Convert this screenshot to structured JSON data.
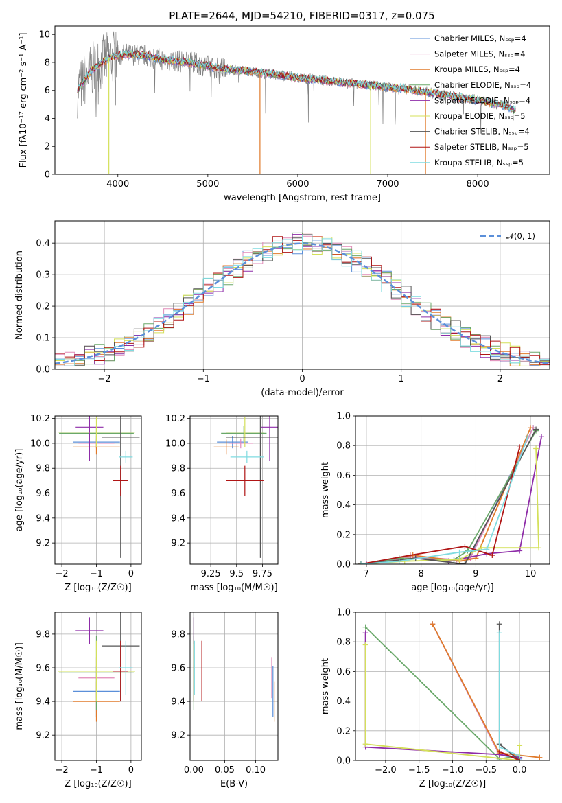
{
  "figure_title": "PLATE=2644, MJD=54210, FIBERID=0317, z=0.075",
  "palette": {
    "Chabrier MILES": "#5b8fd9",
    "Salpeter MILES": "#e08ab8",
    "Kroupa MILES": "#e07a2a",
    "Chabrier ELODIE": "#6aa86a",
    "Salpeter ELODIE": "#8e2ca8",
    "Kroupa ELODIE": "#d4e05a",
    "Chabrier STELIB": "#555555",
    "Salpeter STELIB": "#b01515",
    "Kroupa STELIB": "#7fdbe0",
    "data": "#808080",
    "normal": "#5b8fd9"
  },
  "chart_data": [
    {
      "id": "spectrum",
      "type": "line",
      "xlabel": "wavelength [Angstrom, rest frame]",
      "ylabel": "Flux [fλ10⁻¹⁷ erg cm⁻² s⁻¹ A⁻¹]",
      "xlim": [
        3300,
        8800
      ],
      "ylim": [
        0,
        10.6
      ],
      "xticks": [
        4000,
        5000,
        6000,
        7000,
        8000
      ],
      "yticks": [
        0,
        2,
        4,
        6,
        8,
        10
      ],
      "legend_position": "top-right",
      "legend": [
        "Chabrier MILES, Nₛₛₚ=4",
        "Salpeter MILES, Nₛₛₚ=4",
        "Kroupa MILES, Nₛₛₚ=4",
        "Chabrier ELODIE, Nₛₛₚ=4",
        "Salpeter ELODIE, Nₛₛₚ=4",
        "Kroupa ELODIE, Nₛₛₚ=5",
        "Chabrier STELIB, Nₛₛₚ=4",
        "Salpeter STELIB, Nₛₛₚ=5",
        "Kroupa STELIB, Nₛₛₚ=5"
      ],
      "continuum": {
        "x": [
          3550,
          3700,
          3900,
          4100,
          4300,
          4500,
          4800,
          5100,
          5400,
          5700,
          6000,
          6300,
          6600,
          6900,
          7200,
          7400,
          7700,
          8000,
          8300,
          8400
        ],
        "y": [
          6.0,
          7.4,
          8.3,
          8.6,
          8.5,
          8.2,
          8.0,
          7.6,
          7.4,
          7.2,
          6.9,
          6.7,
          6.5,
          6.3,
          6.1,
          5.9,
          5.6,
          5.3,
          4.9,
          4.6
        ]
      }
    },
    {
      "id": "residual_histogram",
      "type": "bar",
      "xlabel": "(data-model)/error",
      "ylabel": "Normed distribution",
      "xlim": [
        -2.5,
        2.5
      ],
      "ylim": [
        0,
        0.47
      ],
      "xticks": [
        -2,
        -1,
        0,
        1,
        2
      ],
      "yticks": [
        0.0,
        0.1,
        0.2,
        0.3,
        0.4
      ],
      "legend": [
        "𝒩(0, 1)"
      ],
      "legend_position": "top-right",
      "bin_width": 0.1
    },
    {
      "id": "age_vs_Z",
      "type": "scatter",
      "xlabel": "Z [log₁₀(Z/Z☉)]",
      "ylabel": "age [log₁₀(age/yr)]",
      "xlim": [
        -2.2,
        0.3
      ],
      "ylim": [
        9.03,
        10.22
      ],
      "xticks": [
        -2,
        -1,
        0
      ],
      "yticks": [
        9.2,
        9.4,
        9.6,
        9.8,
        10.0,
        10.2
      ],
      "points": [
        {
          "model": "Chabrier MILES",
          "x": -1.0,
          "y": 10.01,
          "xerr": 0.68,
          "yerr": 0.05
        },
        {
          "model": "Salpeter MILES",
          "x": -1.0,
          "y": 10.0,
          "xerr": 0.52,
          "yerr": 0.04
        },
        {
          "model": "Kroupa MILES",
          "x": -1.0,
          "y": 9.97,
          "xerr": 0.68,
          "yerr": 0.06
        },
        {
          "model": "Chabrier ELODIE",
          "x": -1.0,
          "y": 10.08,
          "xerr": 1.08,
          "yerr": 0.06
        },
        {
          "model": "Salpeter ELODIE",
          "x": -1.2,
          "y": 10.13,
          "xerr": 0.4,
          "yerr": 0.27
        },
        {
          "model": "Kroupa ELODIE",
          "x": -1.0,
          "y": 10.09,
          "xerr": 1.12,
          "yerr": 0.12
        },
        {
          "model": "Chabrier STELIB",
          "x": -0.3,
          "y": 10.05,
          "xerr": 0.55,
          "yerr": 0.97
        },
        {
          "model": "Salpeter STELIB",
          "x": -0.3,
          "y": 9.7,
          "xerr": 0.22,
          "yerr": 0.12
        },
        {
          "model": "Kroupa STELIB",
          "x": -0.15,
          "y": 9.89,
          "xerr": 0.2,
          "yerr": 0.05
        }
      ]
    },
    {
      "id": "age_vs_mass",
      "type": "scatter",
      "xlabel": "mass [log₁₀(M/M☉)]",
      "ylabel": "",
      "xlim": [
        9.05,
        9.9
      ],
      "ylim": [
        9.03,
        10.22
      ],
      "xticks": [
        9.25,
        9.5,
        9.75
      ],
      "yticks": [
        9.2,
        9.4,
        9.6,
        9.8,
        10.0,
        10.2
      ],
      "points": [
        {
          "model": "Chabrier MILES",
          "x": 9.46,
          "y": 10.01,
          "xerr": 0.15,
          "yerr": 0.05
        },
        {
          "model": "Salpeter MILES",
          "x": 9.54,
          "y": 10.0,
          "xerr": 0.12,
          "yerr": 0.04
        },
        {
          "model": "Kroupa MILES",
          "x": 9.4,
          "y": 9.97,
          "xerr": 0.12,
          "yerr": 0.06
        },
        {
          "model": "Chabrier ELODIE",
          "x": 9.57,
          "y": 10.08,
          "xerr": 0.22,
          "yerr": 0.06
        },
        {
          "model": "Salpeter ELODIE",
          "x": 9.82,
          "y": 10.13,
          "xerr": 0.08,
          "yerr": 0.27
        },
        {
          "model": "Kroupa ELODIE",
          "x": 9.58,
          "y": 10.09,
          "xerr": 0.18,
          "yerr": 0.12
        },
        {
          "model": "Chabrier STELIB",
          "x": 9.73,
          "y": 10.05,
          "xerr": 0.33,
          "yerr": 0.97
        },
        {
          "model": "Salpeter STELIB",
          "x": 9.58,
          "y": 9.7,
          "xerr": 0.18,
          "yerr": 0.12
        },
        {
          "model": "Kroupa STELIB",
          "x": 9.6,
          "y": 9.89,
          "xerr": 0.16,
          "yerr": 0.05
        }
      ]
    },
    {
      "id": "massweight_vs_age",
      "type": "line",
      "xlabel": "age [log₁₀(age/yr)]",
      "ylabel": "mass weight",
      "xlim": [
        6.8,
        10.35
      ],
      "ylim": [
        0,
        1.0
      ],
      "xticks": [
        7,
        8,
        9,
        10
      ],
      "yticks": [
        0.0,
        0.2,
        0.4,
        0.6,
        0.8,
        1.0
      ],
      "series": [
        {
          "model": "Chabrier MILES",
          "x": [
            6.9,
            7.8,
            8.6,
            8.9,
            10.05
          ],
          "y": [
            0.0,
            0.05,
            0.03,
            0.05,
            0.92
          ]
        },
        {
          "model": "Salpeter MILES",
          "x": [
            6.9,
            7.85,
            8.65,
            8.9,
            10.05
          ],
          "y": [
            0.0,
            0.05,
            0.03,
            0.04,
            0.92
          ]
        },
        {
          "model": "Kroupa MILES",
          "x": [
            6.9,
            7.85,
            8.7,
            9.0,
            10.0
          ],
          "y": [
            0.0,
            0.06,
            0.02,
            0.04,
            0.92
          ]
        },
        {
          "model": "Chabrier ELODIE",
          "x": [
            6.9,
            7.6,
            8.6,
            8.85,
            10.1
          ],
          "y": [
            0.0,
            0.04,
            0.03,
            0.09,
            0.9
          ]
        },
        {
          "model": "Salpeter ELODIE",
          "x": [
            7.0,
            7.9,
            8.5,
            9.2,
            9.8,
            10.2
          ],
          "y": [
            0.0,
            0.04,
            0.02,
            0.07,
            0.09,
            0.86
          ]
        },
        {
          "model": "Kroupa ELODIE",
          "x": [
            6.9,
            7.7,
            8.7,
            9.1,
            10.15,
            10.1
          ],
          "y": [
            0.0,
            0.02,
            0.03,
            0.11,
            0.11,
            0.78
          ]
        },
        {
          "model": "Chabrier STELIB",
          "x": [
            6.9,
            7.9,
            8.8,
            10.1
          ],
          "y": [
            0.0,
            0.04,
            0.0,
            0.91
          ]
        },
        {
          "model": "Salpeter STELIB",
          "x": [
            6.9,
            7.8,
            8.8,
            9.3,
            9.8
          ],
          "y": [
            0.0,
            0.06,
            0.12,
            0.06,
            0.79
          ]
        },
        {
          "model": "Kroupa STELIB",
          "x": [
            6.9,
            7.6,
            8.7,
            9.2,
            9.95
          ],
          "y": [
            0.0,
            0.02,
            0.08,
            0.1,
            0.86
          ]
        }
      ]
    },
    {
      "id": "mass_vs_Z",
      "type": "scatter",
      "xlabel": "Z [log₁₀(Z/Z☉)]",
      "ylabel": "mass [log₁₀(M/M☉)]",
      "xlim": [
        -2.2,
        0.3
      ],
      "ylim": [
        9.05,
        9.93
      ],
      "xticks": [
        -2,
        -1,
        0
      ],
      "yticks": [
        9.2,
        9.4,
        9.6,
        9.8
      ],
      "points": [
        {
          "model": "Chabrier MILES",
          "x": -1.0,
          "y": 9.46,
          "xerr": 0.68,
          "yerr": 0.15
        },
        {
          "model": "Salpeter MILES",
          "x": -1.0,
          "y": 9.54,
          "xerr": 0.52,
          "yerr": 0.12
        },
        {
          "model": "Kroupa MILES",
          "x": -1.0,
          "y": 9.4,
          "xerr": 0.68,
          "yerr": 0.12
        },
        {
          "model": "Chabrier ELODIE",
          "x": -1.0,
          "y": 9.57,
          "xerr": 1.08,
          "yerr": 0.22
        },
        {
          "model": "Salpeter ELODIE",
          "x": -1.2,
          "y": 9.82,
          "xerr": 0.4,
          "yerr": 0.08
        },
        {
          "model": "Kroupa ELODIE",
          "x": -1.0,
          "y": 9.58,
          "xerr": 1.12,
          "yerr": 0.18
        },
        {
          "model": "Chabrier STELIB",
          "x": -0.3,
          "y": 9.73,
          "xerr": 0.55,
          "yerr": 0.33
        },
        {
          "model": "Salpeter STELIB",
          "x": -0.3,
          "y": 9.58,
          "xerr": 0.22,
          "yerr": 0.18
        },
        {
          "model": "Kroupa STELIB",
          "x": -0.15,
          "y": 9.6,
          "xerr": 0.2,
          "yerr": 0.16
        }
      ]
    },
    {
      "id": "mass_vs_EBV",
      "type": "scatter",
      "xlabel": "E(B-V)",
      "ylabel": "",
      "xlim": [
        -0.006,
        0.136
      ],
      "ylim": [
        9.05,
        9.93
      ],
      "xticks": [
        0.0,
        0.05,
        0.1
      ],
      "xticklabels": [
        "0.00",
        "0.05",
        "0.10"
      ],
      "yticks": [
        9.2,
        9.4,
        9.6,
        9.8
      ],
      "points": [
        {
          "model": "Chabrier MILES",
          "x": 0.128,
          "y": 9.46,
          "yerr": 0.15
        },
        {
          "model": "Salpeter MILES",
          "x": 0.126,
          "y": 9.54,
          "yerr": 0.12
        },
        {
          "model": "Kroupa MILES",
          "x": 0.13,
          "y": 9.4,
          "yerr": 0.12
        },
        {
          "model": "Chabrier ELODIE",
          "x": 0.0,
          "y": 9.57,
          "yerr": 0.22
        },
        {
          "model": "Salpeter ELODIE",
          "x": 0.0,
          "y": 9.82,
          "yerr": 0.08
        },
        {
          "model": "Kroupa ELODIE",
          "x": 0.0,
          "y": 9.58,
          "yerr": 0.18
        },
        {
          "model": "Chabrier STELIB",
          "x": 0.0,
          "y": 9.73,
          "yerr": 0.33
        },
        {
          "model": "Salpeter STELIB",
          "x": 0.013,
          "y": 9.58,
          "yerr": 0.18
        },
        {
          "model": "Kroupa STELIB",
          "x": 0.001,
          "y": 9.6,
          "yerr": 0.16
        }
      ]
    },
    {
      "id": "massweight_vs_Z",
      "type": "line",
      "xlabel": "Z [log₁₀(Z/Z☉)]",
      "ylabel": "mass weight",
      "xlim": [
        -2.45,
        0.45
      ],
      "ylim": [
        0,
        1.0
      ],
      "xticks": [
        -2.0,
        -1.5,
        -1.0,
        -0.5,
        0.0
      ],
      "xticklabels": [
        "−2.0",
        "−1.5",
        "−1.0",
        "−0.5",
        "0.0"
      ],
      "yticks": [
        0.0,
        0.2,
        0.4,
        0.6,
        0.8,
        1.0
      ],
      "series": [
        {
          "model": "Chabrier MILES",
          "x": [
            -1.3,
            -0.3,
            0.0
          ],
          "y": [
            0.92,
            0.04,
            0.01
          ]
        },
        {
          "model": "Salpeter MILES",
          "x": [
            -1.3,
            -0.3,
            0.0
          ],
          "y": [
            0.92,
            0.04,
            0.02
          ]
        },
        {
          "model": "Kroupa MILES",
          "x": [
            -1.3,
            -0.3,
            0.3
          ],
          "y": [
            0.92,
            0.05,
            0.02
          ]
        },
        {
          "model": "Chabrier ELODIE",
          "x": [
            -2.3,
            -0.3,
            0.0
          ],
          "y": [
            0.9,
            0.01,
            0.03
          ]
        },
        {
          "model": "Salpeter ELODIE",
          "x": [
            -2.3,
            -2.3,
            -0.3,
            0.0
          ],
          "y": [
            0.86,
            0.09,
            0.04,
            0.02
          ]
        },
        {
          "model": "Kroupa ELODIE",
          "x": [
            -2.3,
            -2.3,
            0.0,
            0.0
          ],
          "y": [
            0.78,
            0.11,
            0.0,
            0.1
          ]
        },
        {
          "model": "Chabrier STELIB",
          "x": [
            -0.3,
            -0.3,
            0.0
          ],
          "y": [
            0.92,
            0.11,
            0.0
          ]
        },
        {
          "model": "Salpeter STELIB",
          "x": [
            -0.3,
            0.0
          ],
          "y": [
            0.06,
            0.0
          ]
        },
        {
          "model": "Kroupa STELIB",
          "x": [
            -0.3,
            -0.3,
            0.0
          ],
          "y": [
            0.86,
            0.09,
            0.03
          ]
        }
      ]
    }
  ]
}
